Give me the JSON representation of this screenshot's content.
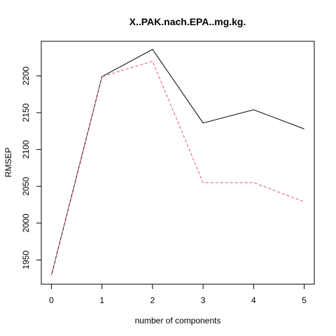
{
  "chart_data": {
    "type": "line",
    "title": "X..PAK.nach.EPA..mg.kg.",
    "xlabel": "number of components",
    "ylabel": "RMSEP",
    "x": [
      0,
      1,
      2,
      3,
      4,
      5
    ],
    "xticks": [
      "0",
      "1",
      "2",
      "3",
      "4",
      "5"
    ],
    "yticks": [
      "1950",
      "2000",
      "2050",
      "2100",
      "2150",
      "2200"
    ],
    "xlim": [
      -0.2,
      5.2
    ],
    "ylim": [
      1917,
      2247
    ],
    "grid": false,
    "series": [
      {
        "values": [
          1929,
          2199,
          2236,
          2136,
          2154,
          2128
        ],
        "color": "#000000",
        "style": "solid"
      },
      {
        "values": [
          1929,
          2199,
          2220,
          2055,
          2055,
          2029
        ],
        "color": "#DF536B",
        "style": "dashed"
      }
    ]
  }
}
